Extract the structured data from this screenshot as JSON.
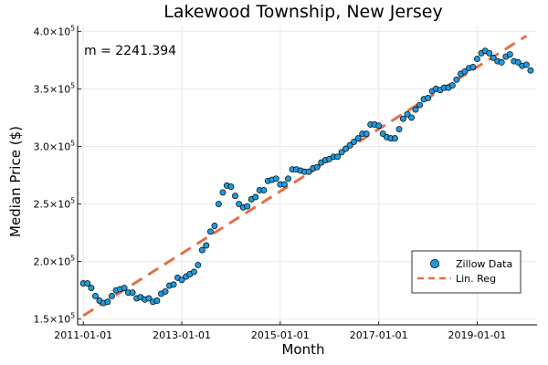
{
  "chart_data": {
    "type": "scatter",
    "title": "Lakewood Township, New Jersey",
    "xlabel": "Month",
    "ylabel": "Median Price ($)",
    "annotation": "m = 2241.394",
    "xlim": [
      "2010-11-20",
      "2020-03-20"
    ],
    "ylim": [
      145000,
      405000
    ],
    "x_ticks": [
      "2011-01-01",
      "2013-01-01",
      "2015-01-01",
      "2017-01-01",
      "2019-01-01"
    ],
    "y_ticks": [
      {
        "mantissa": "1.5",
        "exp": "5",
        "value": 150000
      },
      {
        "mantissa": "2.0",
        "exp": "5",
        "value": 200000
      },
      {
        "mantissa": "2.5",
        "exp": "5",
        "value": 250000
      },
      {
        "mantissa": "3.0",
        "exp": "5",
        "value": 300000
      },
      {
        "mantissa": "3.5",
        "exp": "5",
        "value": 350000
      },
      {
        "mantissa": "4.0",
        "exp": "5",
        "value": 400000
      }
    ],
    "tick_multiplier": "×10",
    "grid": true,
    "legend_position": "bottom-right",
    "colors": {
      "points": "#1f9bdd",
      "point_stroke": "#000000",
      "regression": "#e26f46"
    },
    "series": [
      {
        "name": "Zillow Data",
        "kind": "scatter",
        "start": "2011-01",
        "frequency": "monthly",
        "values": [
          181000,
          181000,
          177000,
          170000,
          166000,
          164000,
          165000,
          170000,
          175000,
          176000,
          177000,
          173000,
          173000,
          168000,
          169000,
          167000,
          168000,
          165000,
          166000,
          172000,
          174000,
          179000,
          180000,
          186000,
          184000,
          187000,
          189000,
          191000,
          197000,
          210000,
          214000,
          226000,
          231000,
          250000,
          260000,
          266000,
          265000,
          257000,
          250000,
          247000,
          248000,
          254000,
          256000,
          262000,
          262000,
          270000,
          271000,
          272000,
          267000,
          267000,
          272000,
          280000,
          280000,
          279000,
          278000,
          278000,
          281000,
          282000,
          286000,
          288000,
          289000,
          291000,
          291000,
          295000,
          298000,
          301000,
          304000,
          307000,
          311000,
          311000,
          319000,
          319000,
          318000,
          311000,
          308000,
          307000,
          307000,
          315000,
          324000,
          328000,
          325000,
          332000,
          336000,
          341000,
          342000,
          348000,
          350000,
          349000,
          351000,
          351000,
          353000,
          358000,
          363000,
          365000,
          368000,
          369000,
          376000,
          381000,
          383000,
          381000,
          377000,
          374000,
          373000,
          378000,
          380000,
          374000,
          373000,
          370000,
          371000,
          366000
        ]
      },
      {
        "name": "Lin. Reg",
        "kind": "line",
        "x": [
          "2011-01-01",
          "2020-01-01"
        ],
        "values": [
          153000,
          396000
        ]
      }
    ]
  }
}
